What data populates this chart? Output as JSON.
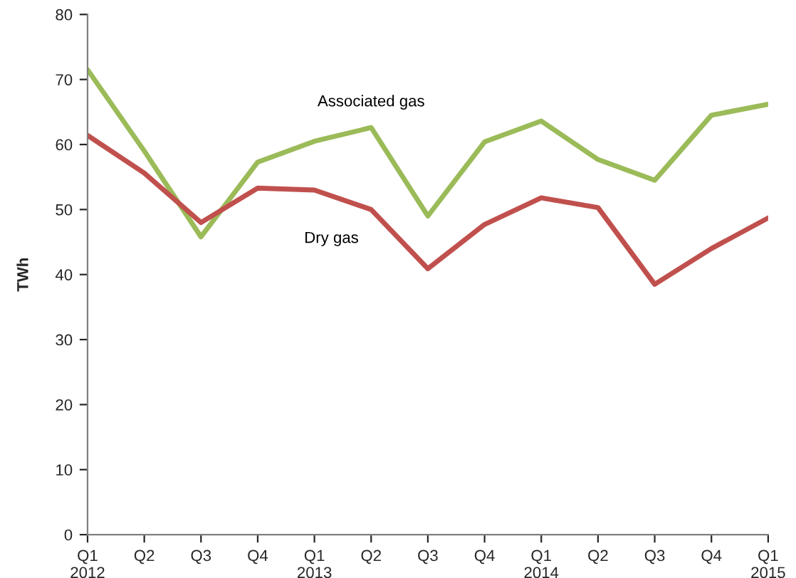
{
  "chart_data": {
    "type": "line",
    "ylabel": "TWh",
    "categories": [
      "Q1\n2012",
      "Q2",
      "Q3",
      "Q4",
      "Q1\n2013",
      "Q2",
      "Q3",
      "Q4",
      "Q1\n2014",
      "Q2",
      "Q3",
      "Q4",
      "Q1\n2015"
    ],
    "series": [
      {
        "name": "Associated gas",
        "color": "#9bbb59",
        "values": [
          71.5,
          59,
          45.8,
          57.3,
          60.5,
          62.6,
          49,
          60.4,
          63.6,
          57.7,
          54.5,
          64.5,
          66.2
        ]
      },
      {
        "name": "Dry gas",
        "color": "#c0504d",
        "values": [
          61.4,
          55.6,
          48,
          53.3,
          53,
          50,
          40.9,
          47.7,
          51.8,
          50.3,
          38.5,
          44,
          48.7
        ]
      }
    ],
    "ylim": [
      0,
      80
    ],
    "yticks": [
      0,
      10,
      20,
      30,
      40,
      50,
      60,
      70,
      80
    ],
    "grid": false,
    "legend": false,
    "marker": "none",
    "line_style": "solid"
  }
}
